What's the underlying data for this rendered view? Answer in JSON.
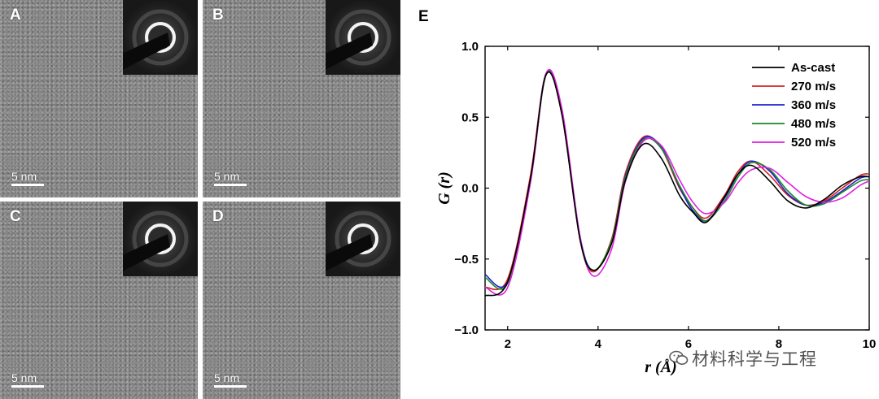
{
  "panels": [
    {
      "letter": "A",
      "scale_label": "5 nm"
    },
    {
      "letter": "B",
      "scale_label": "5 nm"
    },
    {
      "letter": "C",
      "scale_label": "5 nm"
    },
    {
      "letter": "D",
      "scale_label": "5 nm"
    }
  ],
  "chart_letter": "E",
  "watermark": "材料科学与工程",
  "colors": {
    "As-cast": "#000000",
    "270 m/s": "#d62020",
    "360 m/s": "#2020d0",
    "480 m/s": "#1a8a2a",
    "520 m/s": "#e020e0"
  },
  "chart_data": {
    "type": "line",
    "title": "",
    "xlabel": "r (Å)",
    "ylabel": "G (r)",
    "xlim": [
      1.5,
      10
    ],
    "ylim": [
      -1.0,
      1.0
    ],
    "xticks": [
      2,
      4,
      6,
      8,
      10
    ],
    "yticks": [
      -1.0,
      -0.5,
      0.0,
      0.5,
      1.0
    ],
    "ytick_labels": [
      "−1.0",
      "−0.5",
      "0.0",
      "0.5",
      "1.0"
    ],
    "legend_position": "top-right",
    "grid": false,
    "series": [
      {
        "name": "As-cast",
        "x": [
          1.5,
          2.0,
          2.5,
          2.85,
          3.2,
          3.6,
          3.9,
          4.3,
          4.6,
          5.0,
          5.4,
          5.8,
          6.1,
          6.4,
          6.8,
          7.1,
          7.4,
          7.8,
          8.2,
          8.6,
          9.0,
          9.4,
          9.8,
          10.0
        ],
        "y": [
          -0.76,
          -0.66,
          0.06,
          0.8,
          0.52,
          -0.36,
          -0.58,
          -0.39,
          0.05,
          0.31,
          0.21,
          -0.05,
          -0.17,
          -0.24,
          -0.06,
          0.1,
          0.16,
          0.05,
          -0.09,
          -0.14,
          -0.08,
          0.02,
          0.08,
          0.08
        ]
      },
      {
        "name": "270 m/s",
        "x": [
          1.5,
          2.0,
          2.5,
          2.85,
          3.2,
          3.6,
          3.9,
          4.3,
          4.6,
          5.0,
          5.4,
          5.8,
          6.1,
          6.4,
          6.8,
          7.1,
          7.4,
          7.8,
          8.2,
          8.6,
          9.0,
          9.4,
          9.8,
          10.0
        ],
        "y": [
          -0.7,
          -0.64,
          0.08,
          0.81,
          0.52,
          -0.36,
          -0.59,
          -0.36,
          0.1,
          0.36,
          0.28,
          0.0,
          -0.14,
          -0.21,
          -0.05,
          0.12,
          0.19,
          0.09,
          -0.05,
          -0.12,
          -0.09,
          0.0,
          0.09,
          0.1
        ]
      },
      {
        "name": "360 m/s",
        "x": [
          1.5,
          2.0,
          2.5,
          2.85,
          3.2,
          3.6,
          3.9,
          4.3,
          4.6,
          5.0,
          5.4,
          5.8,
          6.1,
          6.4,
          6.8,
          7.1,
          7.4,
          7.8,
          8.2,
          8.6,
          9.0,
          9.4,
          9.8,
          10.0
        ],
        "y": [
          -0.61,
          -0.66,
          0.04,
          0.8,
          0.54,
          -0.34,
          -0.58,
          -0.38,
          0.08,
          0.35,
          0.29,
          0.01,
          -0.16,
          -0.23,
          -0.07,
          0.1,
          0.19,
          0.12,
          -0.04,
          -0.12,
          -0.1,
          -0.02,
          0.07,
          0.08
        ]
      },
      {
        "name": "480 m/s",
        "x": [
          1.5,
          2.0,
          2.5,
          2.85,
          3.2,
          3.6,
          3.9,
          4.3,
          4.6,
          5.0,
          5.4,
          5.8,
          6.1,
          6.4,
          6.8,
          7.1,
          7.4,
          7.8,
          8.2,
          8.6,
          9.0,
          9.4,
          9.8,
          10.0
        ],
        "y": [
          -0.63,
          -0.67,
          0.05,
          0.81,
          0.53,
          -0.35,
          -0.58,
          -0.37,
          0.07,
          0.34,
          0.28,
          0.02,
          -0.14,
          -0.23,
          -0.09,
          0.08,
          0.18,
          0.13,
          -0.02,
          -0.12,
          -0.11,
          -0.03,
          0.05,
          0.06
        ]
      },
      {
        "name": "520 m/s",
        "x": [
          1.5,
          2.0,
          2.5,
          2.85,
          3.2,
          3.6,
          3.9,
          4.3,
          4.6,
          5.0,
          5.4,
          5.8,
          6.1,
          6.4,
          6.8,
          7.1,
          7.4,
          7.8,
          8.2,
          8.6,
          9.0,
          9.4,
          9.8,
          10.0
        ],
        "y": [
          -0.7,
          -0.7,
          0.03,
          0.81,
          0.56,
          -0.34,
          -0.62,
          -0.43,
          0.04,
          0.33,
          0.3,
          0.06,
          -0.1,
          -0.18,
          -0.1,
          0.04,
          0.13,
          0.14,
          0.04,
          -0.06,
          -0.1,
          -0.07,
          0.02,
          0.05
        ]
      }
    ]
  }
}
